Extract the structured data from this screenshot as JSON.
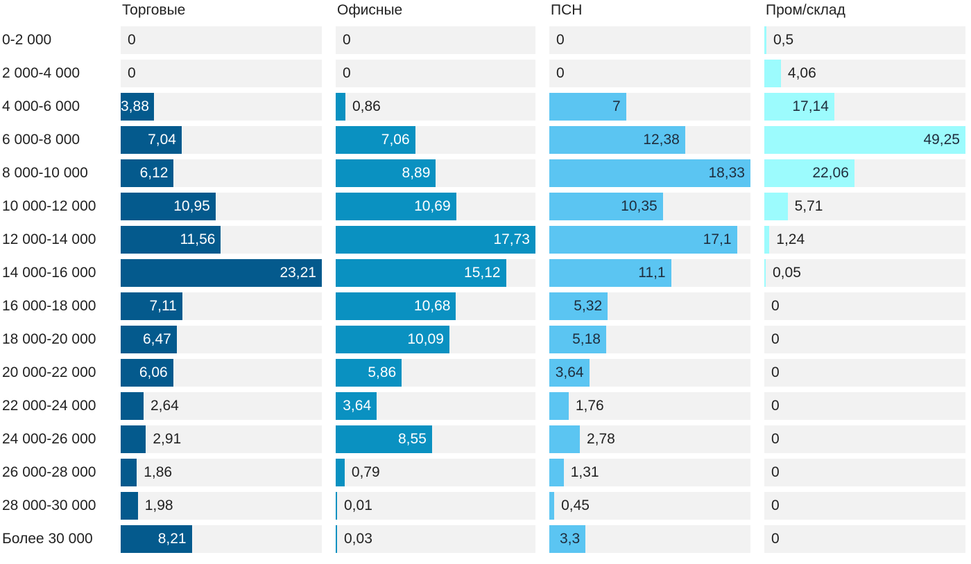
{
  "chart_data": {
    "type": "bar",
    "orientation": "horizontal",
    "layout": "small-multiples",
    "categories": [
      "0-2 000",
      "2 000-4 000",
      "4 000-6 000",
      "6 000-8 000",
      "8 000-10 000",
      "10 000-12 000",
      "12 000-14 000",
      "14 000-16 000",
      "16 000-18 000",
      "18 000-20 000",
      "20 000-22 000",
      "22 000-24 000",
      "24 000-26 000",
      "26 000-28 000",
      "28 000-30 000",
      "Более 30 000"
    ],
    "series": [
      {
        "name": "Торговые",
        "color": "#045a8d",
        "label_color": "#ffffff",
        "max": 23.21,
        "values": [
          0,
          0,
          3.88,
          7.04,
          6.12,
          10.95,
          11.56,
          23.21,
          7.11,
          6.47,
          6.06,
          2.64,
          2.91,
          1.86,
          1.98,
          8.21
        ],
        "labels": [
          "0",
          "0",
          "3,88",
          "7,04",
          "6,12",
          "10,95",
          "11,56",
          "23,21",
          "7,11",
          "6,47",
          "6,06",
          "2,64",
          "2,91",
          "1,86",
          "1,98",
          "8,21"
        ]
      },
      {
        "name": "Офисные",
        "color": "#0a91c1",
        "label_color": "#ffffff",
        "max": 17.73,
        "values": [
          0,
          0,
          0.86,
          7.06,
          8.89,
          10.69,
          17.73,
          15.12,
          10.68,
          10.09,
          5.86,
          3.64,
          8.55,
          0.79,
          0.01,
          0.03
        ],
        "labels": [
          "0",
          "0",
          "0,86",
          "7,06",
          "8,89",
          "10,69",
          "17,73",
          "15,12",
          "10,68",
          "10,09",
          "5,86",
          "3,64",
          "8,55",
          "0,79",
          "0,01",
          "0,03"
        ]
      },
      {
        "name": "ПСН",
        "color": "#5bc5f2",
        "label_color": "#1f2d3d",
        "max": 18.33,
        "values": [
          0,
          0,
          7,
          12.38,
          18.33,
          10.35,
          17.1,
          11.1,
          5.32,
          5.18,
          3.64,
          1.76,
          2.78,
          1.31,
          0.45,
          3.3
        ],
        "labels": [
          "0",
          "0",
          "7",
          "12,38",
          "18,33",
          "10,35",
          "17,1",
          "11,1",
          "5,32",
          "5,18",
          "3,64",
          "1,76",
          "2,78",
          "1,31",
          "0,45",
          "3,3"
        ]
      },
      {
        "name": "Пром/склад",
        "color": "#9cfbfd",
        "label_color": "#1f2d3d",
        "max": 49.25,
        "values": [
          0.5,
          4.06,
          17.14,
          49.25,
          22.06,
          5.71,
          1.24,
          0.05,
          0,
          0,
          0,
          0,
          0,
          0,
          0,
          0
        ],
        "labels": [
          "0,5",
          "4,06",
          "17,14",
          "49,25",
          "22,06",
          "5,71",
          "1,24",
          "0,05",
          "0",
          "0",
          "0",
          "0",
          "0",
          "0",
          "0",
          "0"
        ]
      }
    ]
  }
}
